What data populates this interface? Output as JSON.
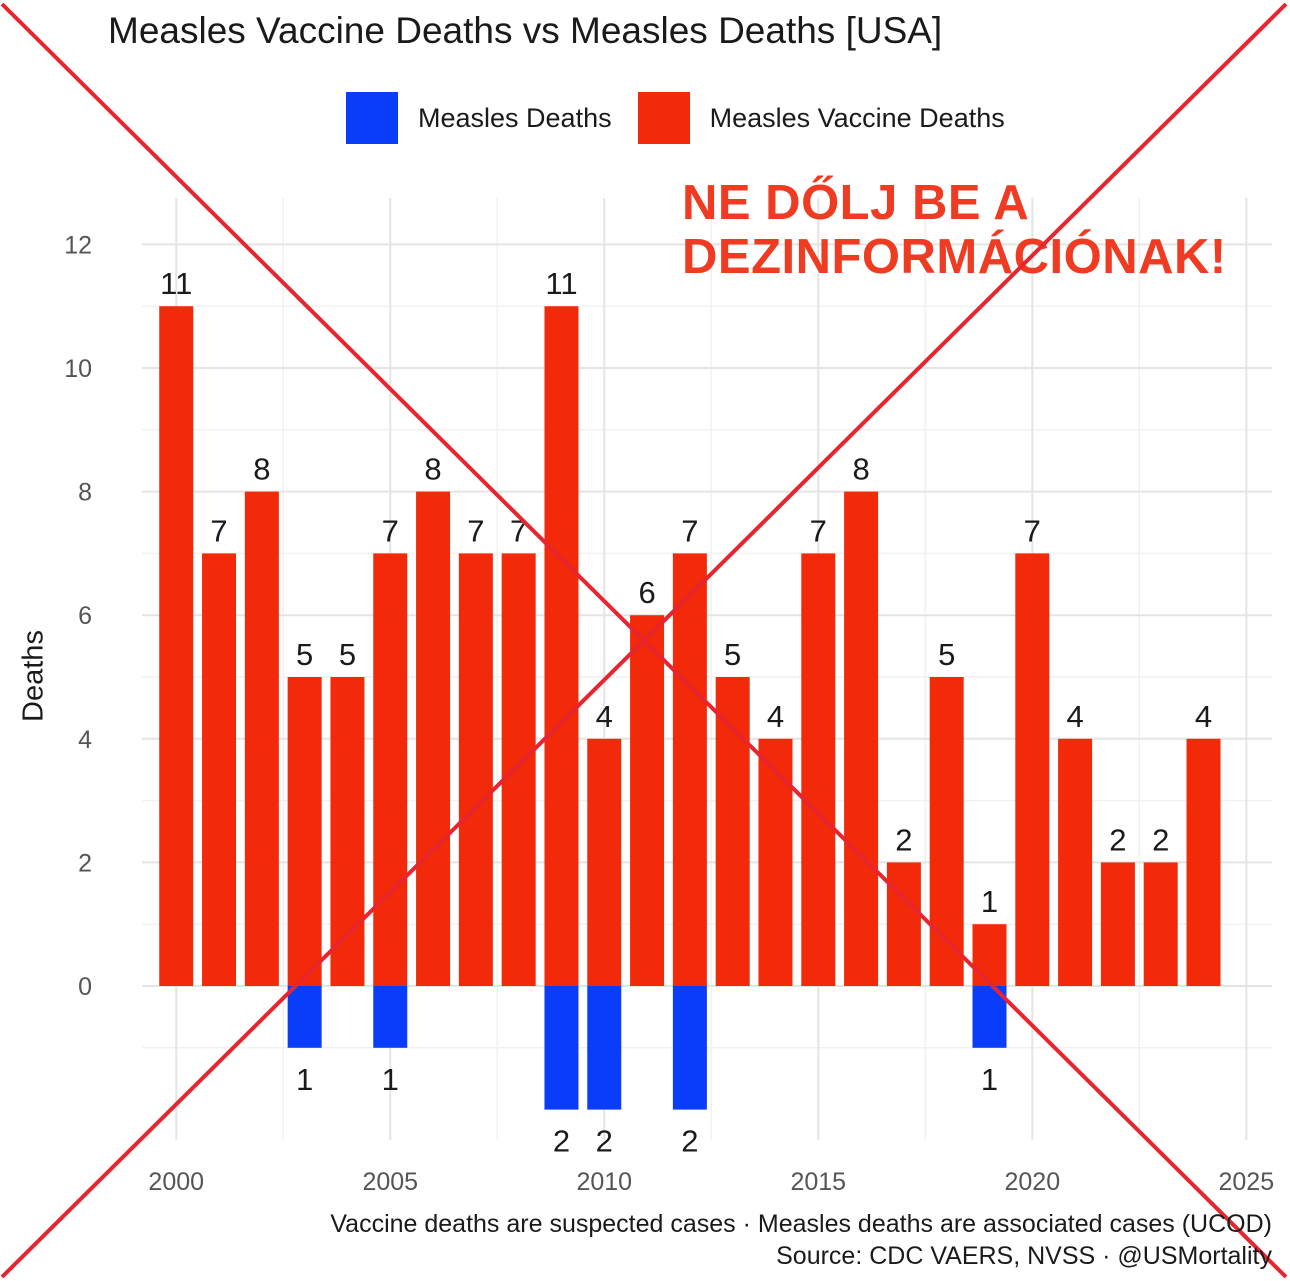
{
  "chart_data": {
    "type": "bar",
    "title": "Measles Vaccine Deaths vs Measles Deaths [USA]",
    "ylabel": "Deaths",
    "xlabel": "",
    "ylim": [
      -2,
      12
    ],
    "xlim": [
      1999.2,
      2025.6
    ],
    "x_ticks": [
      2000,
      2005,
      2010,
      2015,
      2020,
      2025
    ],
    "y_ticks": [
      0,
      2,
      4,
      6,
      8,
      10,
      12
    ],
    "grid": true,
    "legend": {
      "placement": "top",
      "entries": [
        "Measles Deaths",
        "Measles Vaccine Deaths"
      ]
    },
    "series": [
      {
        "name": "Measles Vaccine Deaths",
        "color": "#f22a0a",
        "direction": "up",
        "x": [
          2000,
          2001,
          2002,
          2003,
          2004,
          2005,
          2006,
          2007,
          2008,
          2009,
          2010,
          2011,
          2012,
          2013,
          2014,
          2015,
          2016,
          2017,
          2018,
          2019,
          2020,
          2021,
          2022,
          2023,
          2024
        ],
        "values": [
          11,
          7,
          8,
          5,
          5,
          7,
          8,
          7,
          7,
          11,
          4,
          6,
          7,
          5,
          4,
          7,
          8,
          2,
          5,
          1,
          7,
          4,
          2,
          2,
          4
        ]
      },
      {
        "name": "Measles Deaths",
        "color": "#0a3dfa",
        "direction": "down",
        "x": [
          2003,
          2005,
          2009,
          2010,
          2012,
          2019
        ],
        "values": [
          1,
          1,
          2,
          2,
          2,
          1
        ]
      }
    ]
  },
  "overlay": {
    "warning_lines": [
      "NE DŐLJ BE A",
      "DEZINFORMÁCIÓNAK!"
    ],
    "cross_color": "#e8252f"
  },
  "caption": {
    "line1": "Vaccine deaths are suspected cases · Measles deaths are associated cases (UCOD)",
    "line2": "Source: CDC VAERS, NVSS · @USMortality"
  }
}
